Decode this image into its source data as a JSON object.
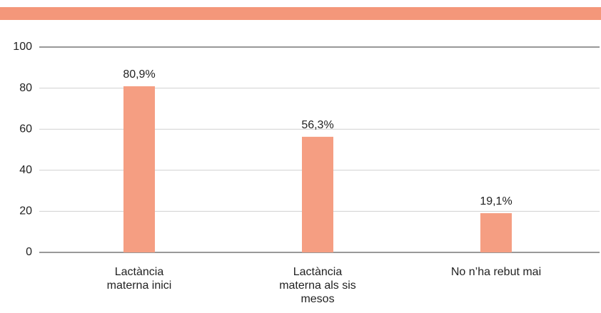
{
  "chart_data": {
    "type": "bar",
    "categories": [
      "Lactància materna inici",
      "Lactància materna als sis mesos",
      "No n’ha rebut mai"
    ],
    "values": [
      80.9,
      56.3,
      19.1
    ],
    "value_labels": [
      "80,9%",
      "56,3%",
      "19,1%"
    ],
    "color": "#f59e82",
    "ylim": [
      0,
      100
    ],
    "yticks": [
      0,
      20,
      40,
      60,
      80,
      100
    ],
    "grid": true
  }
}
